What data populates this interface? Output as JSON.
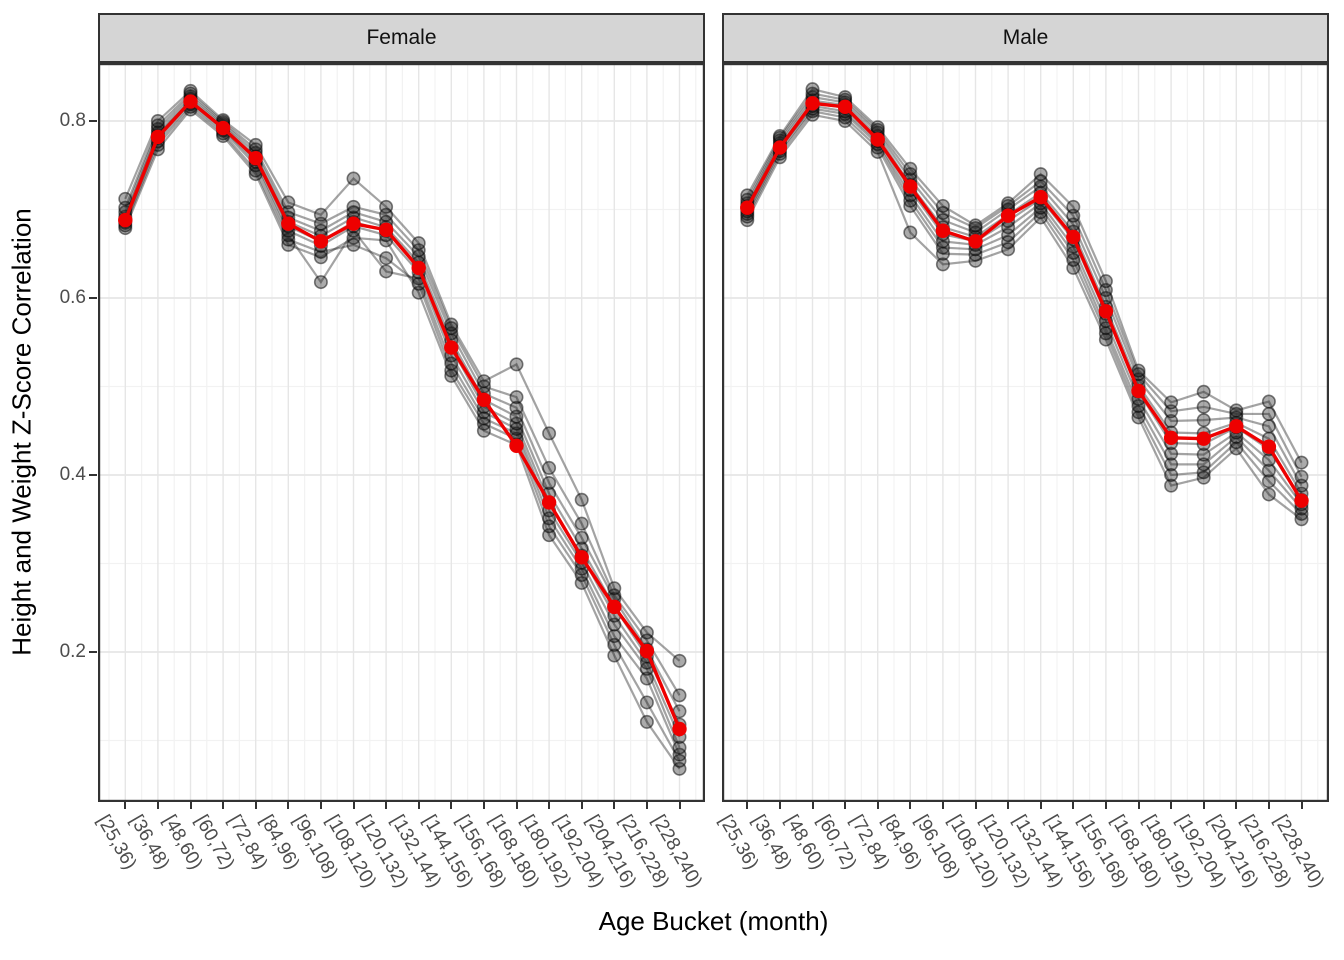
{
  "chart_data": {
    "type": "line",
    "title": "",
    "xlabel": "Age Bucket (month)",
    "ylabel": "Height and Weight Z-Score Correlation",
    "categories": [
      "[25,36)",
      "[36,48)",
      "[48,60)",
      "[60,72)",
      "[72,84)",
      "[84,96)",
      "[96,108)",
      "[108,120)",
      "[120,132)",
      "[132,144)",
      "[144,156)",
      "[156,168)",
      "[168,180)",
      "[180,192)",
      "[192,204)",
      "[204,216)",
      "[216,228)",
      "[228,240)"
    ],
    "ylim": [
      0.03,
      0.866
    ],
    "y_major_ticks": [
      0.8,
      0.6,
      0.4,
      0.2
    ],
    "y_tick_labels": [
      "0.8",
      "0.6",
      "0.4",
      "0.2"
    ],
    "y_minor_gridlines": [
      0.7,
      0.5,
      0.3,
      0.1
    ],
    "grid": true,
    "legend": "none",
    "facets": [
      {
        "label": "Female",
        "mean_series": [
          0.688,
          0.782,
          0.822,
          0.792,
          0.758,
          0.684,
          0.664,
          0.684,
          0.677,
          0.634,
          0.544,
          0.485,
          0.433,
          0.369,
          0.307,
          0.251,
          0.201,
          0.113
        ],
        "individual_series": [
          [
            0.679,
            0.768,
            0.813,
            0.783,
            0.74,
            0.66,
            0.646,
            0.668,
            0.665,
            0.606,
            0.512,
            0.45,
            0.434,
            0.332,
            0.278,
            0.196,
            0.121,
            0.068
          ],
          [
            0.682,
            0.773,
            0.816,
            0.786,
            0.744,
            0.666,
            0.652,
            0.66,
            0.645,
            0.616,
            0.518,
            0.458,
            0.441,
            0.342,
            0.287,
            0.208,
            0.143,
            0.077
          ],
          [
            0.685,
            0.777,
            0.819,
            0.789,
            0.75,
            0.671,
            0.618,
            0.676,
            0.63,
            0.622,
            0.526,
            0.464,
            0.447,
            0.351,
            0.294,
            0.218,
            0.17,
            0.084
          ],
          [
            0.687,
            0.781,
            0.821,
            0.791,
            0.754,
            0.676,
            0.659,
            0.681,
            0.671,
            0.629,
            0.535,
            0.471,
            0.452,
            0.36,
            0.301,
            0.231,
            0.181,
            0.092
          ],
          [
            0.689,
            0.784,
            0.823,
            0.793,
            0.757,
            0.681,
            0.664,
            0.686,
            0.676,
            0.634,
            0.544,
            0.477,
            0.458,
            0.369,
            0.309,
            0.241,
            0.188,
            0.104
          ],
          [
            0.692,
            0.787,
            0.825,
            0.795,
            0.76,
            0.686,
            0.67,
            0.691,
            0.68,
            0.64,
            0.552,
            0.485,
            0.466,
            0.379,
            0.317,
            0.251,
            0.195,
            0.118
          ],
          [
            0.697,
            0.791,
            0.828,
            0.797,
            0.764,
            0.691,
            0.676,
            0.697,
            0.686,
            0.647,
            0.56,
            0.492,
            0.476,
            0.391,
            0.329,
            0.26,
            0.203,
            0.133
          ],
          [
            0.702,
            0.795,
            0.831,
            0.799,
            0.768,
            0.697,
            0.684,
            0.703,
            0.694,
            0.654,
            0.566,
            0.5,
            0.488,
            0.408,
            0.345,
            0.264,
            0.213,
            0.151
          ],
          [
            0.712,
            0.8,
            0.834,
            0.801,
            0.773,
            0.708,
            0.694,
            0.735,
            0.703,
            0.662,
            0.57,
            0.506,
            0.525,
            0.447,
            0.372,
            0.272,
            0.222,
            0.19
          ]
        ]
      },
      {
        "label": "Male",
        "mean_series": [
          0.702,
          0.77,
          0.82,
          0.816,
          0.779,
          0.726,
          0.676,
          0.664,
          0.693,
          0.714,
          0.669,
          0.585,
          0.495,
          0.442,
          0.441,
          0.455,
          0.432,
          0.371
        ],
        "individual_series": [
          [
            0.688,
            0.759,
            0.807,
            0.8,
            0.765,
            0.674,
            0.638,
            0.642,
            0.655,
            0.691,
            0.634,
            0.553,
            0.465,
            0.388,
            0.397,
            0.43,
            0.378,
            0.35
          ],
          [
            0.692,
            0.763,
            0.811,
            0.804,
            0.77,
            0.704,
            0.65,
            0.649,
            0.663,
            0.697,
            0.643,
            0.56,
            0.471,
            0.4,
            0.403,
            0.437,
            0.393,
            0.356
          ],
          [
            0.695,
            0.766,
            0.814,
            0.808,
            0.774,
            0.71,
            0.657,
            0.655,
            0.671,
            0.702,
            0.651,
            0.566,
            0.478,
            0.412,
            0.412,
            0.443,
            0.405,
            0.362
          ],
          [
            0.698,
            0.769,
            0.817,
            0.811,
            0.777,
            0.716,
            0.664,
            0.66,
            0.68,
            0.707,
            0.658,
            0.574,
            0.486,
            0.424,
            0.423,
            0.448,
            0.417,
            0.367
          ],
          [
            0.701,
            0.772,
            0.82,
            0.815,
            0.78,
            0.722,
            0.672,
            0.664,
            0.687,
            0.712,
            0.666,
            0.582,
            0.494,
            0.436,
            0.435,
            0.454,
            0.429,
            0.372
          ],
          [
            0.704,
            0.775,
            0.823,
            0.818,
            0.783,
            0.728,
            0.68,
            0.669,
            0.694,
            0.719,
            0.675,
            0.59,
            0.501,
            0.448,
            0.447,
            0.459,
            0.441,
            0.379
          ],
          [
            0.707,
            0.778,
            0.827,
            0.821,
            0.787,
            0.734,
            0.688,
            0.674,
            0.7,
            0.726,
            0.683,
            0.6,
            0.508,
            0.461,
            0.462,
            0.465,
            0.455,
            0.388
          ],
          [
            0.711,
            0.781,
            0.831,
            0.824,
            0.79,
            0.74,
            0.696,
            0.679,
            0.704,
            0.732,
            0.693,
            0.609,
            0.514,
            0.472,
            0.477,
            0.469,
            0.469,
            0.398
          ],
          [
            0.716,
            0.783,
            0.836,
            0.827,
            0.793,
            0.746,
            0.704,
            0.682,
            0.707,
            0.74,
            0.703,
            0.619,
            0.518,
            0.482,
            0.494,
            0.473,
            0.483,
            0.414
          ]
        ]
      }
    ],
    "colors": {
      "mean_line": "#EE0000",
      "individual_line": "rgba(35,35,35,0.42)",
      "individual_point_fill": "rgba(35,35,35,0.38)",
      "individual_point_stroke": "rgba(0,0,0,0.50)",
      "strip_fill": "#D5D5D5",
      "panel_border": "#333333",
      "grid_major": "#E6E6E6",
      "grid_minor": "#F2F2F2",
      "tick_text": "#4D4D4D"
    }
  }
}
